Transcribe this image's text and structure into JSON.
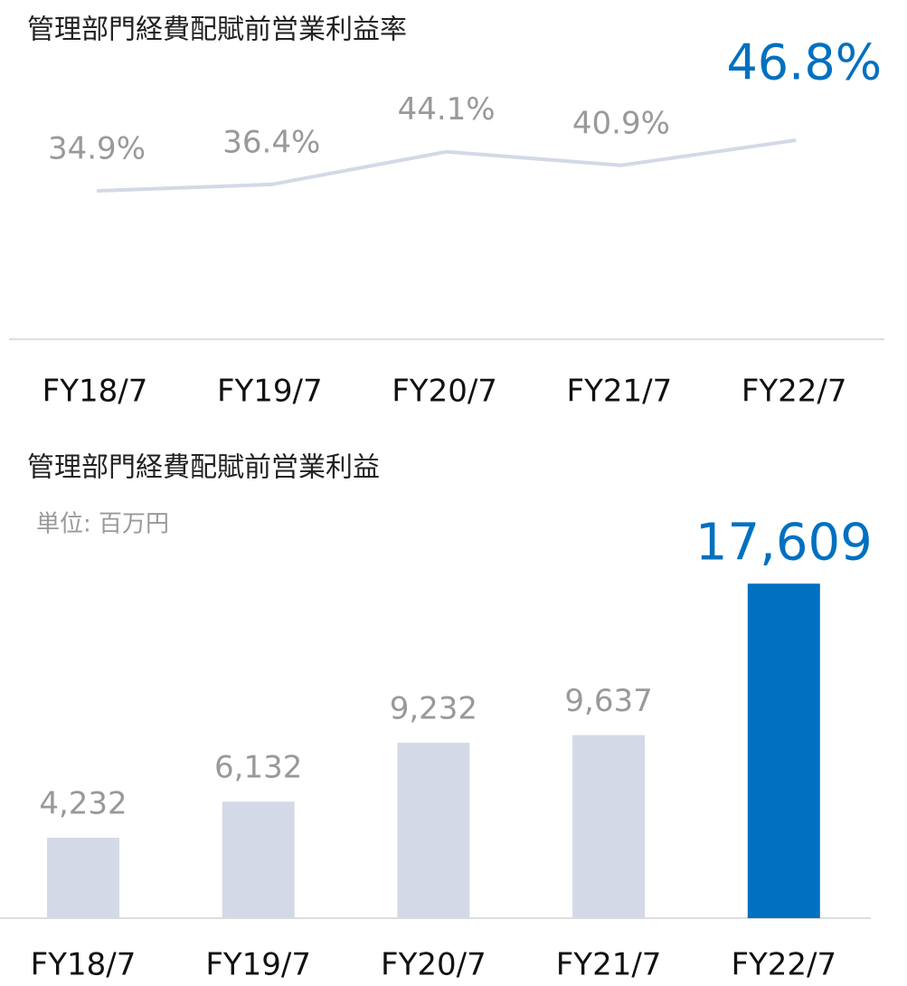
{
  "chart_data": [
    {
      "type": "line",
      "title": "管理部門経費配賦前営業利益率",
      "categories": [
        "FY18/7",
        "FY19/7",
        "FY20/7",
        "FY21/7",
        "FY22/7"
      ],
      "values": [
        34.9,
        36.4,
        44.1,
        40.9,
        46.8
      ],
      "value_labels": [
        "34.9%",
        "36.4%",
        "44.1%",
        "40.9%",
        "46.8%"
      ],
      "color": "#d3d9e6",
      "label_colors": [
        "#999999",
        "#999999",
        "#999999",
        "#999999",
        "#0070c0"
      ]
    },
    {
      "type": "bar",
      "title": "管理部門経費配賦前営業利益",
      "subtitle": "単位: 百万円",
      "categories": [
        "FY18/7",
        "FY19/7",
        "FY20/7",
        "FY21/7",
        "FY22/7"
      ],
      "values": [
        4232,
        6132,
        9232,
        9637,
        17609
      ],
      "value_labels": [
        "4,232",
        "6,132",
        "9,232",
        "9,637",
        "17,609"
      ],
      "colors": [
        "#d3d9e6",
        "#d3d9e6",
        "#d3d9e6",
        "#d3d9e6",
        "#0070c0"
      ],
      "label_colors": [
        "#999999",
        "#999999",
        "#999999",
        "#999999",
        "#0070c0"
      ]
    }
  ]
}
